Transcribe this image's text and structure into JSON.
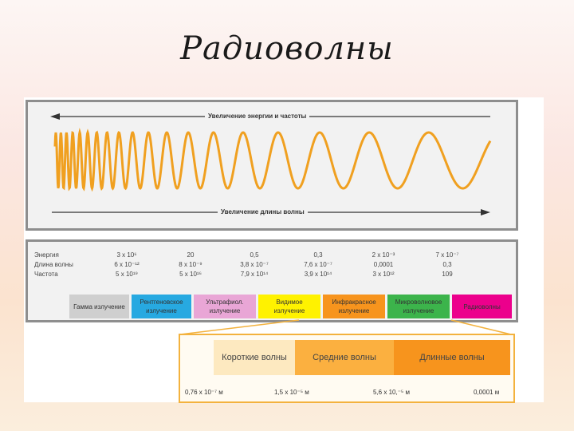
{
  "slide": {
    "title": "Радиоволны"
  },
  "wave": {
    "top_arrow_label": "Увеличение энергии и частоты",
    "bottom_arrow_label": "Увеличение длины волны",
    "wave_color": "#f0a020"
  },
  "table": {
    "row_labels": [
      "Энергия",
      "Длина волны",
      "Частота"
    ],
    "columns": [
      {
        "energy": "3 x 10⁶",
        "wavelength": "6 x 10⁻¹²",
        "frequency": "5 x 10¹⁹"
      },
      {
        "energy": "20",
        "wavelength": "8 x 10⁻⁹",
        "frequency": "5 x 10¹⁶"
      },
      {
        "energy": "0,5",
        "wavelength": "3,8 x 10⁻⁷",
        "frequency": "7,9 x 10¹⁴"
      },
      {
        "energy": "0,3",
        "wavelength": "7,6 x 10⁻⁷",
        "frequency": "3,9 x 10¹⁴"
      },
      {
        "energy": "2 x 10⁻³",
        "wavelength": "0,0001",
        "frequency": "3 x 10¹²"
      },
      {
        "energy": "7 x 10⁻⁷",
        "wavelength": "0,3",
        "frequency": "109"
      }
    ]
  },
  "bands": [
    {
      "label": "Гамма излучение",
      "color": "#cfcfcf"
    },
    {
      "label": "Рентгеновское излучение",
      "color": "#27a9e1"
    },
    {
      "label": "Ультрафиол. излучение",
      "color": "#e9a6d6"
    },
    {
      "label": "Видимое излучение",
      "color": "#fff200"
    },
    {
      "label": "Инфракрасное излучение",
      "color": "#f7941d"
    },
    {
      "label": "Микроволновое излучение",
      "color": "#3cb44b"
    },
    {
      "label": "Радиоволны",
      "color": "#ec008c"
    }
  ],
  "radio": {
    "subbands": [
      {
        "label": "Короткие волны",
        "color": "#fde9c0"
      },
      {
        "label": "Средние волны",
        "color": "#fbb040"
      },
      {
        "label": "Длинные волны",
        "color": "#f7941d"
      }
    ],
    "scale": [
      "0,76 x 10⁻⁷ м",
      "1,5 x 10⁻⁵ м",
      "5,6 x 10,⁻⁵ м",
      "0,0001 м"
    ]
  }
}
